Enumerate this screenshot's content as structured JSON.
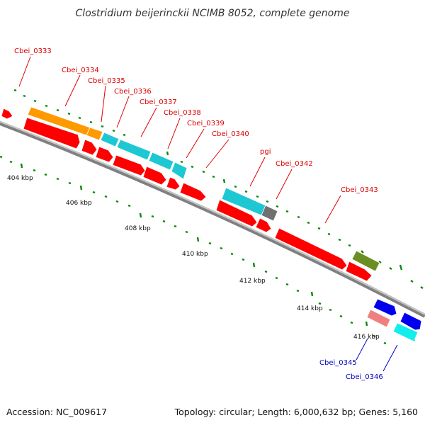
{
  "title": "Clostridium beijerinckii NCIMB 8052, complete genome",
  "footer": {
    "accession": "Accession: NC_009617",
    "topology": "Topology: circular; Length: 6,000,632 bp; Genes: 5,160"
  },
  "colors": {
    "forward_label": "#dd0000",
    "reverse_label": "#0000bb",
    "backbone": "#808080",
    "ticks": "#0b8a0b",
    "gene_red": "#ff0000",
    "gene_orange": "#ff9900",
    "gene_cyan": "#1ec8d2",
    "gene_gray": "#707070",
    "gene_olive": "#6b8e23",
    "gene_blue": "#0000ee",
    "gene_pink": "#f08080",
    "gene_lightcyan": "#11eeee"
  },
  "scale_labels": [
    "404 kbp",
    "406 kbp",
    "408 kbp",
    "410 kbp",
    "412 kbp",
    "414 kbp",
    "416 kbp"
  ],
  "gene_labels": [
    {
      "text": "Cbei_0333",
      "strand": "forward"
    },
    {
      "text": "Cbei_0334",
      "strand": "forward"
    },
    {
      "text": "Cbei_0335",
      "strand": "forward"
    },
    {
      "text": "Cbei_0336",
      "strand": "forward"
    },
    {
      "text": "Cbei_0337",
      "strand": "forward"
    },
    {
      "text": "Cbei_0338",
      "strand": "forward"
    },
    {
      "text": "Cbei_0339",
      "strand": "forward"
    },
    {
      "text": "Cbei_0340",
      "strand": "forward"
    },
    {
      "text": "pgi",
      "strand": "forward"
    },
    {
      "text": "Cbei_0342",
      "strand": "forward"
    },
    {
      "text": "Cbei_0343",
      "strand": "forward"
    },
    {
      "text": "Cbei_0345",
      "strand": "reverse"
    },
    {
      "text": "Cbei_0346",
      "strand": "reverse"
    }
  ]
}
